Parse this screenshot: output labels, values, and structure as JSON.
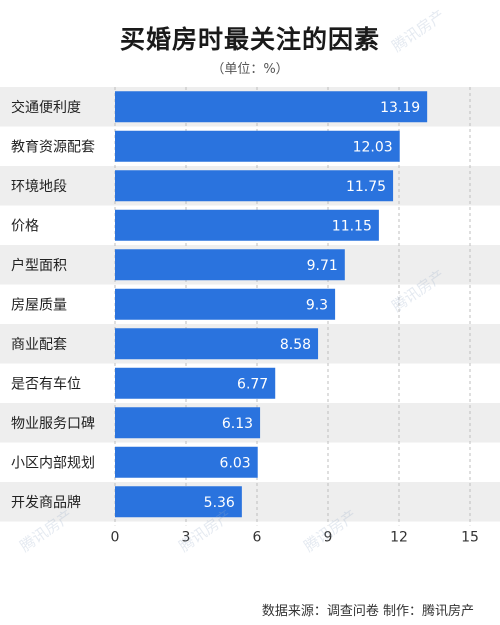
{
  "header": {
    "title": "买婚房时最关注的因素",
    "unit": "（单位：%）"
  },
  "footer": {
    "text": "数据来源：调查问卷  制作：腾讯房产"
  },
  "watermark": "腾讯房产",
  "colors": {
    "bar": "#2a73de",
    "grid": "#bfbfbf",
    "row_alt": "#eeeeee",
    "row": "#ffffff"
  },
  "chart_data": {
    "type": "bar",
    "orientation": "horizontal",
    "categories": [
      "交通便利度",
      "教育资源配套",
      "环境地段",
      "价格",
      "户型面积",
      "房屋质量",
      "商业配套",
      "是否有车位",
      "物业服务口碑",
      "小区内部规划",
      "开发商品牌"
    ],
    "values": [
      13.19,
      12.03,
      11.75,
      11.15,
      9.71,
      9.3,
      8.58,
      6.77,
      6.13,
      6.03,
      5.36
    ],
    "value_labels": [
      "13.19",
      "12.03",
      "11.75",
      "11.15",
      "9.71",
      "9.3",
      "8.58",
      "6.77",
      "6.13",
      "6.03",
      "5.36"
    ],
    "xlim": [
      0,
      15
    ],
    "xticks": [
      "0",
      "3",
      "6",
      "9",
      "12",
      "15"
    ],
    "grid": true
  }
}
